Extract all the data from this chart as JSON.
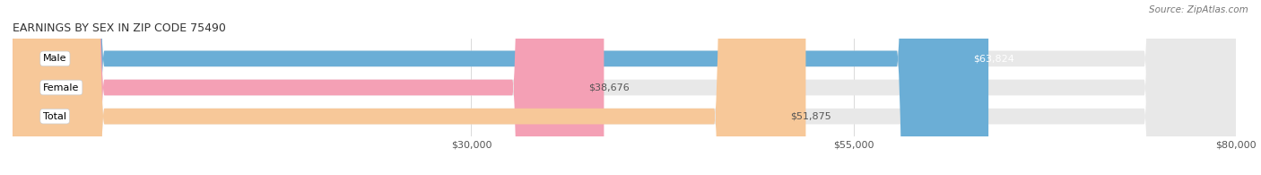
{
  "title": "EARNINGS BY SEX IN ZIP CODE 75490",
  "source": "Source: ZipAtlas.com",
  "categories": [
    "Male",
    "Female",
    "Total"
  ],
  "values": [
    63824,
    38676,
    51875
  ],
  "bar_colors": [
    "#6baed6",
    "#f4a0b5",
    "#f7c899"
  ],
  "label_colors": [
    "white",
    "#555555",
    "#555555"
  ],
  "track_color": "#e8e8e8",
  "xlim_min": 0,
  "xlim_max": 80000,
  "xticks": [
    30000,
    55000,
    80000
  ],
  "xtick_labels": [
    "$30,000",
    "$55,000",
    "$80,000"
  ],
  "bar_height": 0.55,
  "fig_width": 14.06,
  "fig_height": 1.95,
  "title_fontsize": 9,
  "tick_fontsize": 8,
  "label_fontsize": 8,
  "value_fontsize": 8,
  "source_fontsize": 7.5,
  "background_color": "#ffffff"
}
